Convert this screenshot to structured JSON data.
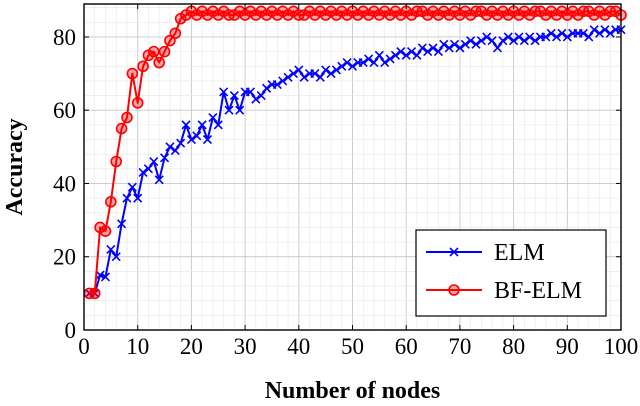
{
  "chart_data": {
    "type": "line",
    "title": "",
    "xlabel": "Number of nodes",
    "ylabel": "Accuracy",
    "xlim": [
      0,
      100
    ],
    "ylim": [
      0,
      89
    ],
    "xticks": [
      0,
      10,
      20,
      30,
      40,
      50,
      60,
      70,
      80,
      90,
      100
    ],
    "yticks": [
      0,
      20,
      40,
      60,
      80
    ],
    "grid": true,
    "legend_position": "bottom-right",
    "series": [
      {
        "name": "ELM",
        "color": "#0000ff",
        "marker": "x",
        "x": [
          1,
          2,
          3,
          4,
          5,
          6,
          7,
          8,
          9,
          10,
          11,
          12,
          13,
          14,
          15,
          16,
          17,
          18,
          19,
          20,
          21,
          22,
          23,
          24,
          25,
          26,
          27,
          28,
          29,
          30,
          31,
          32,
          33,
          34,
          35,
          36,
          37,
          38,
          39,
          40,
          41,
          42,
          43,
          44,
          45,
          46,
          47,
          48,
          49,
          50,
          51,
          52,
          53,
          54,
          55,
          56,
          57,
          58,
          59,
          60,
          61,
          62,
          63,
          64,
          65,
          66,
          67,
          68,
          69,
          70,
          71,
          72,
          73,
          74,
          75,
          76,
          77,
          78,
          79,
          80,
          81,
          82,
          83,
          84,
          85,
          86,
          87,
          88,
          89,
          90,
          91,
          92,
          93,
          94,
          95,
          96,
          97,
          98,
          99,
          100
        ],
        "y": [
          10,
          10,
          15,
          14.5,
          22,
          20,
          29,
          36,
          39,
          36,
          43,
          44,
          46,
          41,
          47,
          50,
          49,
          51,
          56,
          52,
          53,
          56,
          52,
          58,
          56,
          65,
          60,
          64,
          60,
          65,
          65,
          63,
          64,
          66,
          67,
          67,
          68,
          69,
          70,
          71,
          69,
          70,
          70,
          69,
          71,
          70,
          71,
          72,
          73,
          72,
          73,
          73,
          74,
          73,
          75,
          73,
          74,
          75,
          76,
          75,
          76,
          75,
          77,
          76,
          77,
          76,
          78,
          77,
          78,
          77,
          78,
          79,
          78,
          79,
          80,
          79,
          77,
          79,
          80,
          79,
          80,
          79,
          80,
          79,
          80,
          80,
          81,
          80,
          81,
          80,
          81,
          81,
          81,
          80,
          82,
          81,
          82,
          81,
          82,
          82
        ]
      },
      {
        "name": "BF-ELM",
        "color": "#ff0000",
        "marker": "circle",
        "x": [
          1,
          2,
          3,
          4,
          5,
          6,
          7,
          8,
          9,
          10,
          11,
          12,
          13,
          14,
          15,
          16,
          17,
          18,
          19,
          20,
          21,
          22,
          23,
          24,
          25,
          26,
          27,
          28,
          29,
          30,
          31,
          32,
          33,
          34,
          35,
          36,
          37,
          38,
          39,
          40,
          41,
          42,
          43,
          44,
          45,
          46,
          47,
          48,
          49,
          50,
          51,
          52,
          53,
          54,
          55,
          56,
          57,
          58,
          59,
          60,
          61,
          62,
          63,
          64,
          65,
          66,
          67,
          68,
          69,
          70,
          71,
          72,
          73,
          74,
          75,
          76,
          77,
          78,
          79,
          80,
          81,
          82,
          83,
          84,
          85,
          86,
          87,
          88,
          89,
          90,
          91,
          92,
          93,
          94,
          95,
          96,
          97,
          98,
          99,
          100
        ],
        "y": [
          10,
          10,
          28,
          27,
          35,
          46,
          55,
          58,
          70,
          62,
          72,
          75,
          76,
          73,
          76,
          79,
          81,
          85,
          86,
          87,
          86,
          87,
          86,
          87,
          86,
          87,
          86,
          86,
          87,
          86,
          87,
          86,
          87,
          86,
          87,
          86,
          87,
          86,
          87,
          86,
          86,
          87,
          86,
          87,
          86,
          87,
          86,
          87,
          86,
          87,
          86,
          87,
          86,
          87,
          86,
          87,
          86,
          87,
          86,
          87,
          86,
          87,
          87,
          86,
          87,
          86,
          87,
          86,
          87,
          86,
          87,
          86,
          87,
          87,
          86,
          87,
          86,
          87,
          86,
          87,
          86,
          87,
          86,
          87,
          87,
          86,
          87,
          86,
          87,
          86,
          87,
          86,
          87,
          87,
          86,
          87,
          86,
          87,
          87,
          86
        ]
      }
    ]
  }
}
